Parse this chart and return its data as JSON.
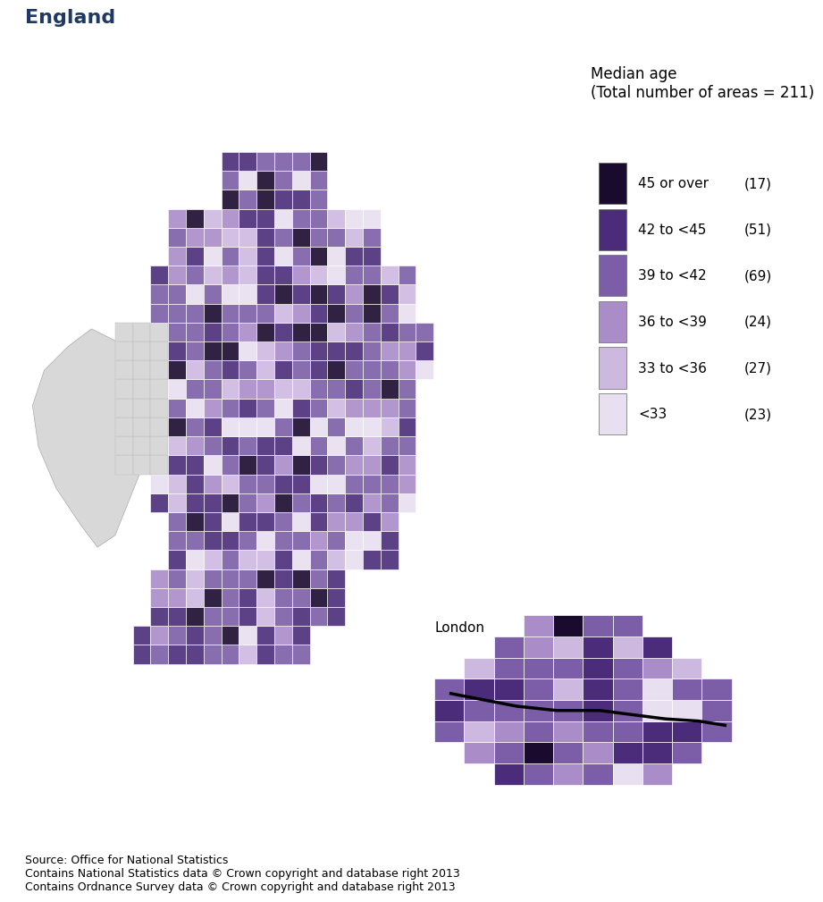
{
  "title": "England",
  "title_color": "#1f3864",
  "title_fontsize": 16,
  "title_bold": true,
  "legend_title": "Median age\n(Total number of areas = 211)",
  "legend_labels": [
    "45 or over",
    "42 to <45",
    "39 to <42",
    "36 to <39",
    "33 to <36",
    "<33"
  ],
  "legend_counts": [
    "(17)",
    "(51)",
    "(69)",
    "(24)",
    "(27)",
    "(23)"
  ],
  "legend_colors": [
    "#1a0a2e",
    "#4b2c7a",
    "#7b5ea7",
    "#a98cc8",
    "#cdb8e0",
    "#e8dff0"
  ],
  "london_label": "London",
  "source_lines": [
    "Source: Office for National Statistics",
    "Contains National Statistics data © Crown copyright and database right 2013",
    "Contains Ordnance Survey data © Crown copyright and database right 2013"
  ],
  "background_color": "#ffffff",
  "wales_color": "#d8d8d8",
  "border_color": "#555555",
  "london_border_color": "#000000",
  "source_fontsize": 9,
  "legend_fontsize": 11,
  "legend_title_fontsize": 12
}
